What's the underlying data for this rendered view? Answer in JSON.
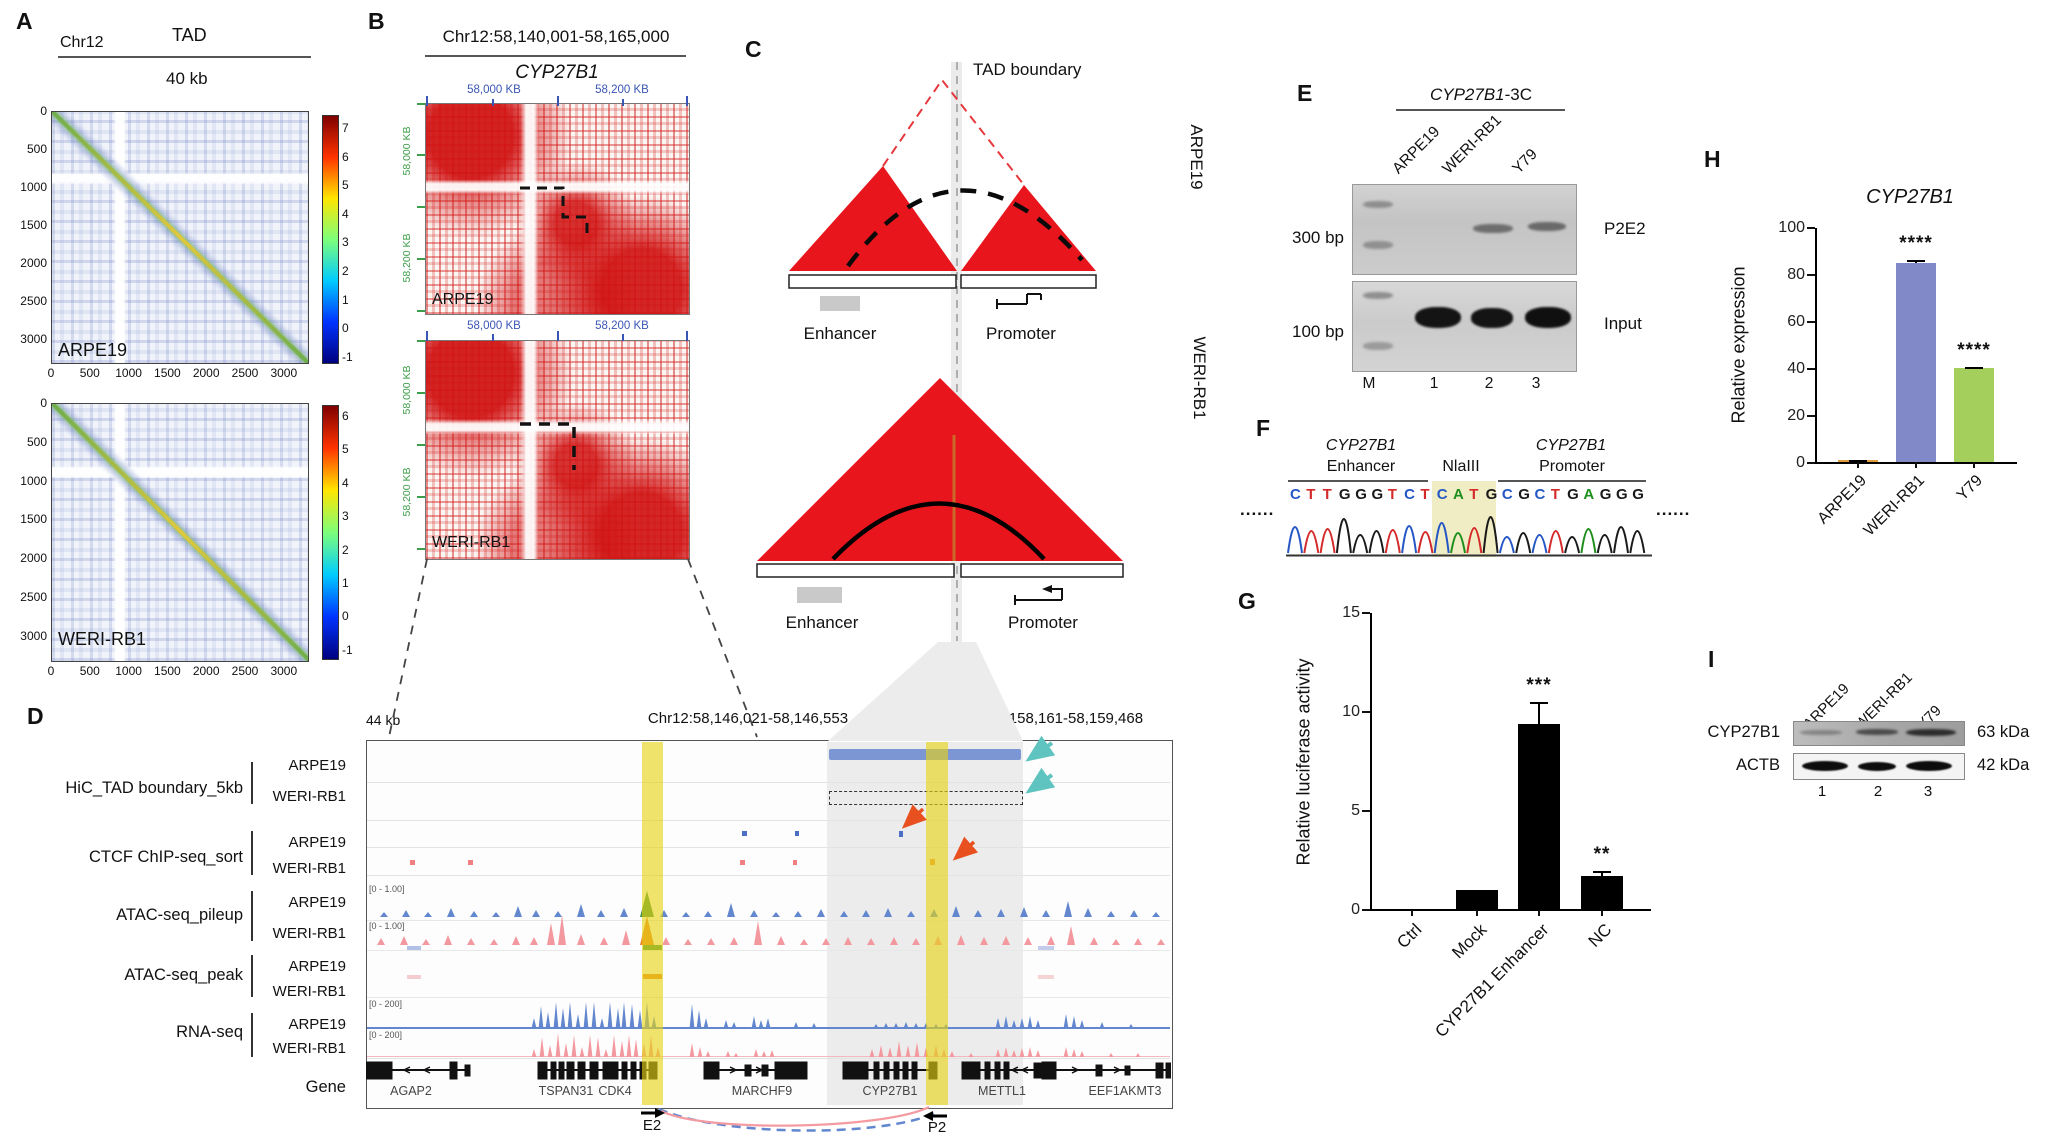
{
  "panels": {
    "A": {
      "label": "A",
      "chr": "Chr12",
      "tad": "TAD",
      "resolution": "40 kb",
      "axis_ticks": [
        "0",
        "500",
        "1000",
        "1500",
        "2000",
        "2500",
        "3000"
      ],
      "maps": [
        {
          "name": "ARPE19",
          "colorbar": [
            "7",
            "6",
            "5",
            "4",
            "3",
            "2",
            "1",
            "0",
            "-1"
          ]
        },
        {
          "name": "WERI-RB1",
          "colorbar": [
            "6",
            "5",
            "4",
            "3",
            "2",
            "1",
            "0",
            "-1"
          ]
        }
      ]
    },
    "B": {
      "label": "B",
      "region": "Chr12:58,140,001-58,165,000",
      "gene": "CYP27B1",
      "x_labels": [
        "58,000 KB",
        "58,200 KB"
      ],
      "y_labels": [
        "58,000 KB",
        "58,200 KB"
      ],
      "maps": [
        {
          "name": "ARPE19"
        },
        {
          "name": "WERI-RB1"
        }
      ]
    },
    "C": {
      "label": "C",
      "boundary_label": "TAD boundary",
      "cells": [
        "ARPE19",
        "WERI-RB1"
      ],
      "enhancer": "Enhancer",
      "promoter": "Promoter"
    },
    "D": {
      "label": "D",
      "scale": "44 kb",
      "coord_left": "Chr12:58,146,021-58,146,553",
      "coord_right": "Chr12:58,158,161-58,159,468",
      "tracks": [
        {
          "name": "HiC_TAD boundary_5kb",
          "rows": [
            "ARPE19",
            "WERI-RB1"
          ]
        },
        {
          "name": "CTCF ChIP-seq_sort",
          "rows": [
            "ARPE19",
            "WERI-RB1"
          ]
        },
        {
          "name": "ATAC-seq_pileup",
          "rows": [
            "ARPE19",
            "WERI-RB1"
          ]
        },
        {
          "name": "ATAC-seq_peak",
          "rows": [
            "ARPE19",
            "WERI-RB1"
          ]
        },
        {
          "name": "RNA-seq",
          "rows": [
            "ARPE19",
            "WERI-RB1"
          ]
        },
        {
          "name": "Gene",
          "rows": []
        }
      ],
      "range_atac": "[0 - 1.00]",
      "range_rna": "[0 - 200]",
      "genes": [
        "AGAP2",
        "TSPAN31",
        "CDK4",
        "MARCHF9",
        "CYP27B1",
        "METTL1",
        "EEF1AKMT3"
      ],
      "anchor_e2": "E2",
      "anchor_p2": "P2"
    },
    "E": {
      "label": "E",
      "title_gene": "CYP27B1",
      "title_suffix": "-3C",
      "lanes": [
        "ARPE19",
        "WERI-RB1",
        "Y79"
      ],
      "size_top": "300 bp",
      "size_bottom": "100 bp",
      "band_top": "P2E2",
      "band_bottom": "Input",
      "lane_ids": [
        "M",
        "1",
        "2",
        "3"
      ]
    },
    "F": {
      "label": "F",
      "gene_left": "CYP27B1",
      "region_left": "Enhancer",
      "site": "NlaIII",
      "gene_right": "CYP27B1",
      "region_right": "Promoter",
      "sequence": "CTTGGGTCTCATGCGCTGAGGG",
      "highlight_start": 9,
      "highlight_end": 13,
      "dots_left": "......",
      "dots_right": "......"
    },
    "G": {
      "label": "G"
    },
    "H": {
      "label": "H"
    },
    "I": {
      "label": "I",
      "lanes": [
        "ARPE19",
        "WERI-RB1",
        "Y79"
      ],
      "rows": [
        {
          "protein": "CYP27B1",
          "kda": "63 kDa"
        },
        {
          "protein": "ACTB",
          "kda": "42 kDa"
        }
      ],
      "lane_ids": [
        "1",
        "2",
        "3"
      ]
    }
  },
  "chart_data": [
    {
      "id": "luciferase",
      "type": "bar",
      "title": "",
      "ylabel": "Relative luciferase activity",
      "ylim": [
        0,
        15
      ],
      "yticks": [
        "15",
        "10",
        "5",
        "0"
      ],
      "categories": [
        "Ctrl",
        "Mock",
        "CYP27B1 Enhancer",
        "NC"
      ],
      "values": [
        0,
        1.0,
        9.4,
        1.7
      ],
      "errors": [
        0,
        0,
        1.1,
        0.25
      ],
      "sig": [
        "",
        "",
        "***",
        "**"
      ],
      "colors": [
        "#000000",
        "#000000",
        "#000000",
        "#000000"
      ],
      "grid": false,
      "legend": "none"
    },
    {
      "id": "expression",
      "type": "bar",
      "title": "CYP27B1",
      "ylabel": "Relative expression",
      "ylim": [
        0,
        100
      ],
      "yticks": [
        "100",
        "80",
        "60",
        "40",
        "20",
        "0"
      ],
      "categories": [
        "ARPE19",
        "WERI-RB1",
        "Y79"
      ],
      "values": [
        0.8,
        85,
        40
      ],
      "errors": [
        0.2,
        1.5,
        0.8
      ],
      "sig": [
        "",
        "****",
        "****"
      ],
      "colors": [
        "#e09c3c",
        "#8289c9",
        "#a5cf5d"
      ],
      "grid": false,
      "legend": "none"
    }
  ],
  "colors": {
    "red_triangle": "#e8151c",
    "yellow_highlight": "rgba(230,212,20,0.62)",
    "gray_band": "#ececec",
    "tad_bar_blue": "#7b96d2",
    "atac_blue": "#6287cf",
    "atac_pink": "#f2989e",
    "rna_blue": "#6287cf",
    "rna_pink": "#f2989e",
    "cyan_arrow": "#5fc4c0",
    "red_arrow": "#e8511f"
  }
}
